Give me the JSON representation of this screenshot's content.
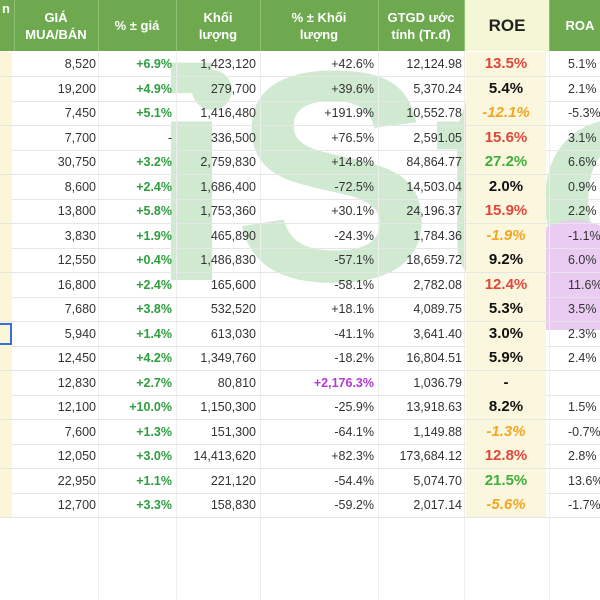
{
  "header": {
    "col_name_fragment": "n",
    "price": [
      "GIÁ",
      "MUA/BÁN"
    ],
    "price_change": "% ± giá",
    "volume": [
      "Khối",
      "lượng"
    ],
    "volume_change": [
      "% ± Khối",
      "lượng"
    ],
    "gtgd": [
      "GTGD ước",
      "tính (Tr.đ)"
    ],
    "roe": "ROE",
    "roa": "ROA"
  },
  "watermark_text": "iStoc",
  "rows": [
    {
      "price": "8,520",
      "pct": "+6.9%",
      "vol": "1,423,120",
      "volpct": "+42.6%",
      "gtgd": "12,124.98",
      "roe": "13.5%",
      "roe_color": "red",
      "roa": "5.1%"
    },
    {
      "price": "19,200",
      "pct": "+4.9%",
      "vol": "279,700",
      "volpct": "+39.6%",
      "gtgd": "5,370.24",
      "roe": "5.4%",
      "roe_color": "black",
      "roa": "2.1%"
    },
    {
      "price": "7,450",
      "pct": "+5.1%",
      "vol": "1,416,480",
      "volpct": "+191.9%",
      "gtgd": "10,552.78",
      "roe": "-12.1%",
      "roe_color": "orange",
      "roa": "-5.3%"
    },
    {
      "price": "7,700",
      "pct": "-",
      "vol": "336,500",
      "volpct": "+76.5%",
      "gtgd": "2,591.05",
      "roe": "15.6%",
      "roe_color": "red",
      "roa": "3.1%"
    },
    {
      "price": "30,750",
      "pct": "+3.2%",
      "vol": "2,759,830",
      "volpct": "+14.8%",
      "gtgd": "84,864.77",
      "roe": "27.2%",
      "roe_color": "green",
      "roa": "6.6%"
    },
    {
      "price": "8,600",
      "pct": "+2.4%",
      "vol": "1,686,400",
      "volpct": "-72.5%",
      "gtgd": "14,503.04",
      "roe": "2.0%",
      "roe_color": "black",
      "roa": "0.9%"
    },
    {
      "price": "13,800",
      "pct": "+5.8%",
      "vol": "1,753,360",
      "volpct": "+30.1%",
      "gtgd": "24,196.37",
      "roe": "15.9%",
      "roe_color": "red",
      "roa": "2.2%"
    },
    {
      "price": "3,830",
      "pct": "+1.9%",
      "vol": "465,890",
      "volpct": "-24.3%",
      "gtgd": "1,784.36",
      "roe": "-1.9%",
      "roe_color": "orange",
      "roa": "-1.1%"
    },
    {
      "price": "12,550",
      "pct": "+0.4%",
      "vol": "1,486,830",
      "volpct": "-57.1%",
      "gtgd": "18,659.72",
      "roe": "9.2%",
      "roe_color": "black",
      "roa": "6.0%"
    },
    {
      "price": "16,800",
      "pct": "+2.4%",
      "vol": "165,600",
      "volpct": "-58.1%",
      "gtgd": "2,782.08",
      "roe": "12.4%",
      "roe_color": "red",
      "roa": "11.6%"
    },
    {
      "price": "7,680",
      "pct": "+3.8%",
      "vol": "532,520",
      "volpct": "+18.1%",
      "gtgd": "4,089.75",
      "roe": "5.3%",
      "roe_color": "black",
      "roa": "3.5%"
    },
    {
      "price": "5,940",
      "pct": "+1.4%",
      "vol": "613,030",
      "volpct": "-41.1%",
      "gtgd": "3,641.40",
      "roe": "3.0%",
      "roe_color": "black",
      "roa": "2.3%"
    },
    {
      "price": "12,450",
      "pct": "+4.2%",
      "vol": "1,349,760",
      "volpct": "-18.2%",
      "gtgd": "16,804.51",
      "roe": "5.9%",
      "roe_color": "black",
      "roa": "2.4%"
    },
    {
      "price": "12,830",
      "pct": "+2.7%",
      "vol": "80,810",
      "volpct": "+2,176.3%",
      "volpct_color": "magenta",
      "gtgd": "1,036.79",
      "roe": "-",
      "roe_color": "black",
      "roa": ""
    },
    {
      "price": "12,100",
      "pct": "+10.0%",
      "vol": "1,150,300",
      "volpct": "-25.9%",
      "gtgd": "13,918.63",
      "roe": "8.2%",
      "roe_color": "black",
      "roa": "1.5%"
    },
    {
      "price": "7,600",
      "pct": "+1.3%",
      "vol": "151,300",
      "volpct": "-64.1%",
      "gtgd": "1,149.88",
      "roe": "-1.3%",
      "roe_color": "orange",
      "roa": "-0.7%"
    },
    {
      "price": "12,050",
      "pct": "+3.0%",
      "vol": "14,413,620",
      "volpct": "+82.3%",
      "gtgd": "173,684.12",
      "roe": "12.8%",
      "roe_color": "red",
      "roa": "2.8%"
    },
    {
      "price": "22,950",
      "pct": "+1.1%",
      "vol": "221,120",
      "volpct": "-54.4%",
      "gtgd": "5,074.70",
      "roe": "21.5%",
      "roe_color": "green",
      "roa": "13.6%"
    },
    {
      "price": "12,700",
      "pct": "+3.3%",
      "vol": "158,830",
      "volpct": "-59.2%",
      "gtgd": "2,017.14",
      "roe": "-5.6%",
      "roe_color": "orange",
      "roa": "-1.7%"
    }
  ],
  "colors": {
    "header_bg": "#6ea94f",
    "positive": "#2e9e3e",
    "roe_red": "#e0473a",
    "roe_green": "#3fae3a",
    "roe_orange": "#f2a623",
    "magenta": "#b23bd6"
  }
}
